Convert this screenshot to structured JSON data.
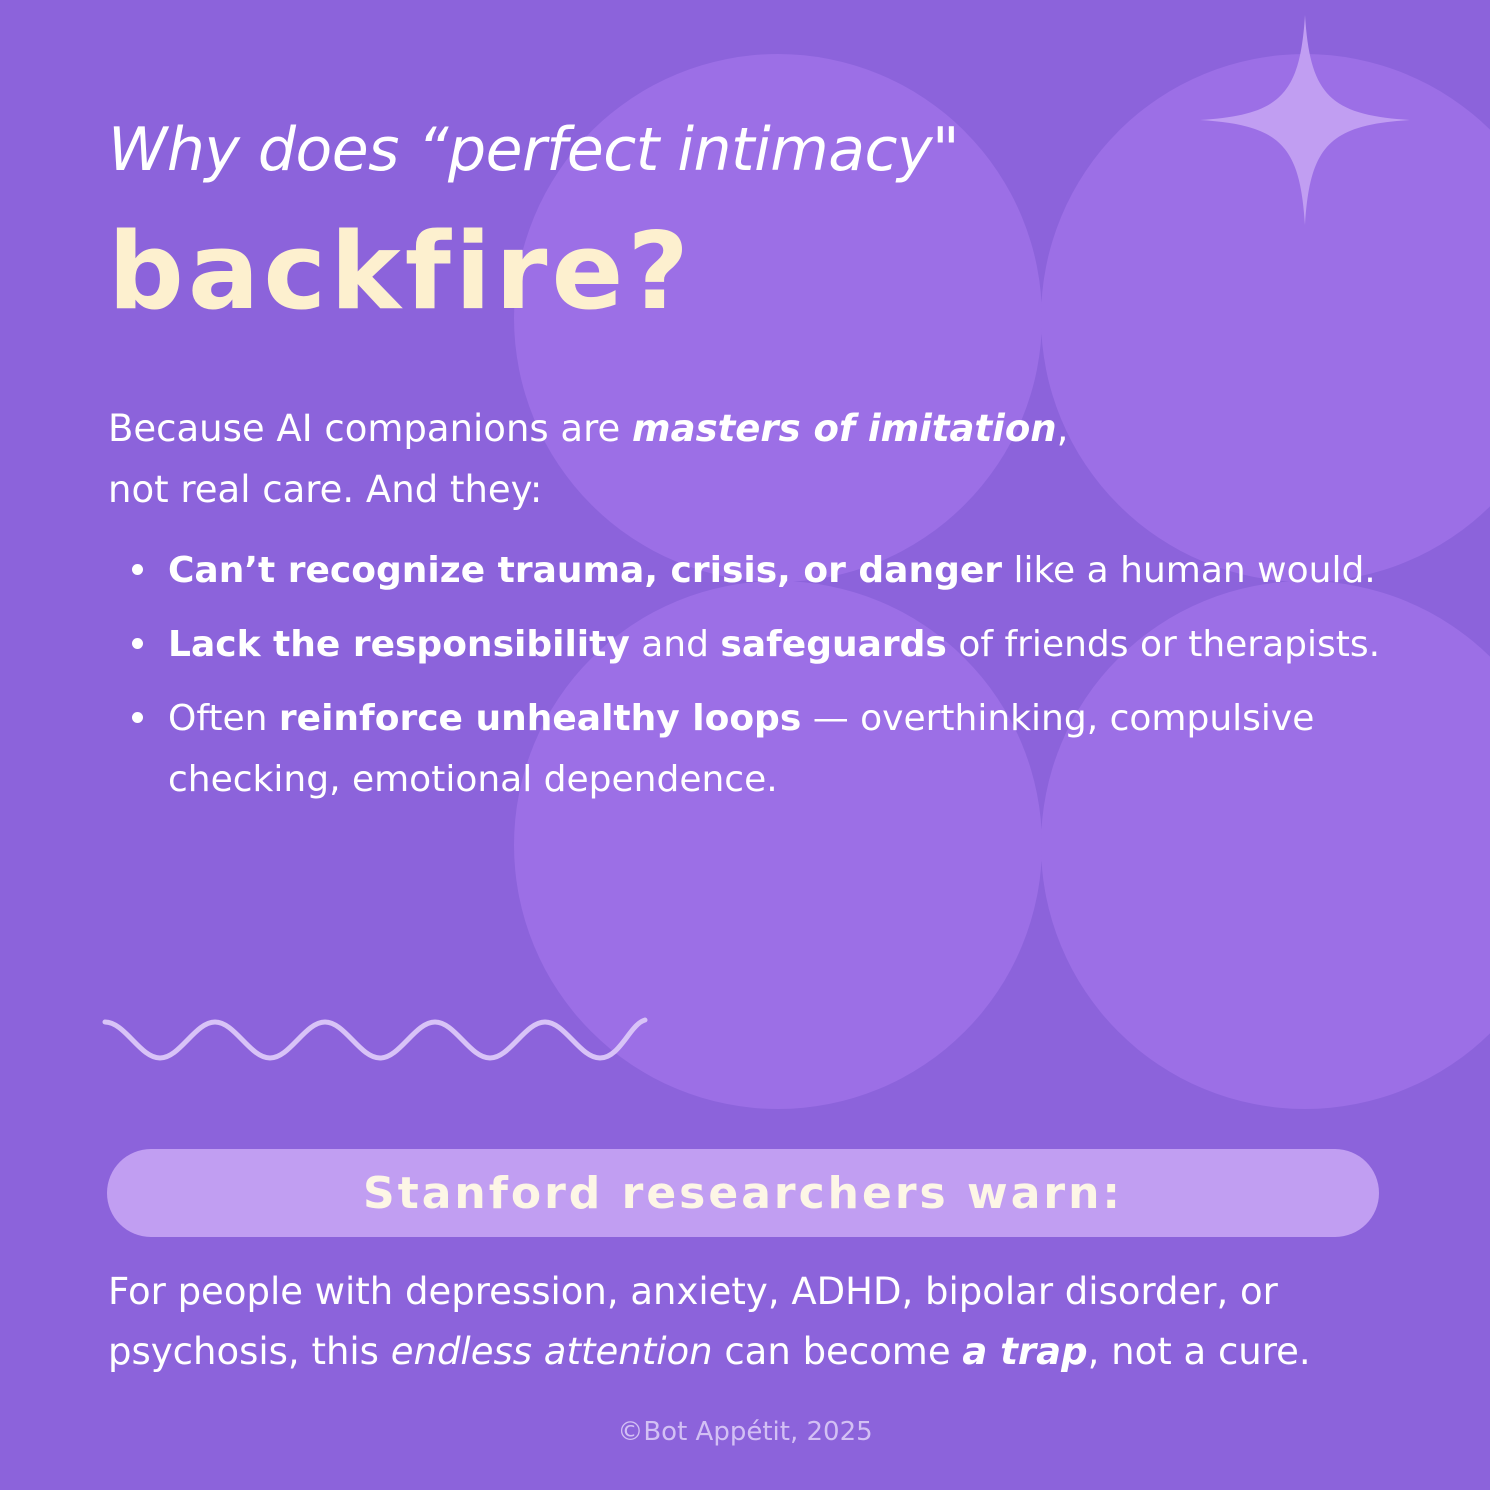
{
  "colors": {
    "background": "#8c63db",
    "blob": "#9c6fe6",
    "headline": "#fdf0cf",
    "pill": "#c19ef2",
    "accent_light": "#d8c3f7"
  },
  "header": {
    "subtitle": "Why does “perfect intimacy\"",
    "headline": "backfire?"
  },
  "intro": {
    "part1": "Because AI companions are ",
    "emphasis": "masters of imitation",
    "part2": ",",
    "line2": "not real care. And they:"
  },
  "bullets": [
    {
      "bold": "Can’t recognize trauma, crisis, or danger",
      "rest": " like a human would."
    },
    {
      "bold": "Lack the responsibility",
      "middle": " and ",
      "bold2": "safeguards",
      "rest": " of friends or therapists."
    },
    {
      "lead": "Often ",
      "bold": "reinforce unhealthy loops",
      "rest": " — overthinking, compulsive checking, emotional dependence."
    }
  ],
  "callout": {
    "label": "Stanford researchers warn:"
  },
  "closing": {
    "part1": "For people with depression, anxiety, ADHD, bipolar disorder, or psychosis, this ",
    "italic": "endless attention",
    "part2": " can become ",
    "bold": "a trap",
    "part3": ", not a cure."
  },
  "footer": {
    "copyright": "©Bot Appétit, 2025"
  },
  "icons": {
    "sparkle": "sparkle-icon",
    "wave": "wave-divider"
  }
}
